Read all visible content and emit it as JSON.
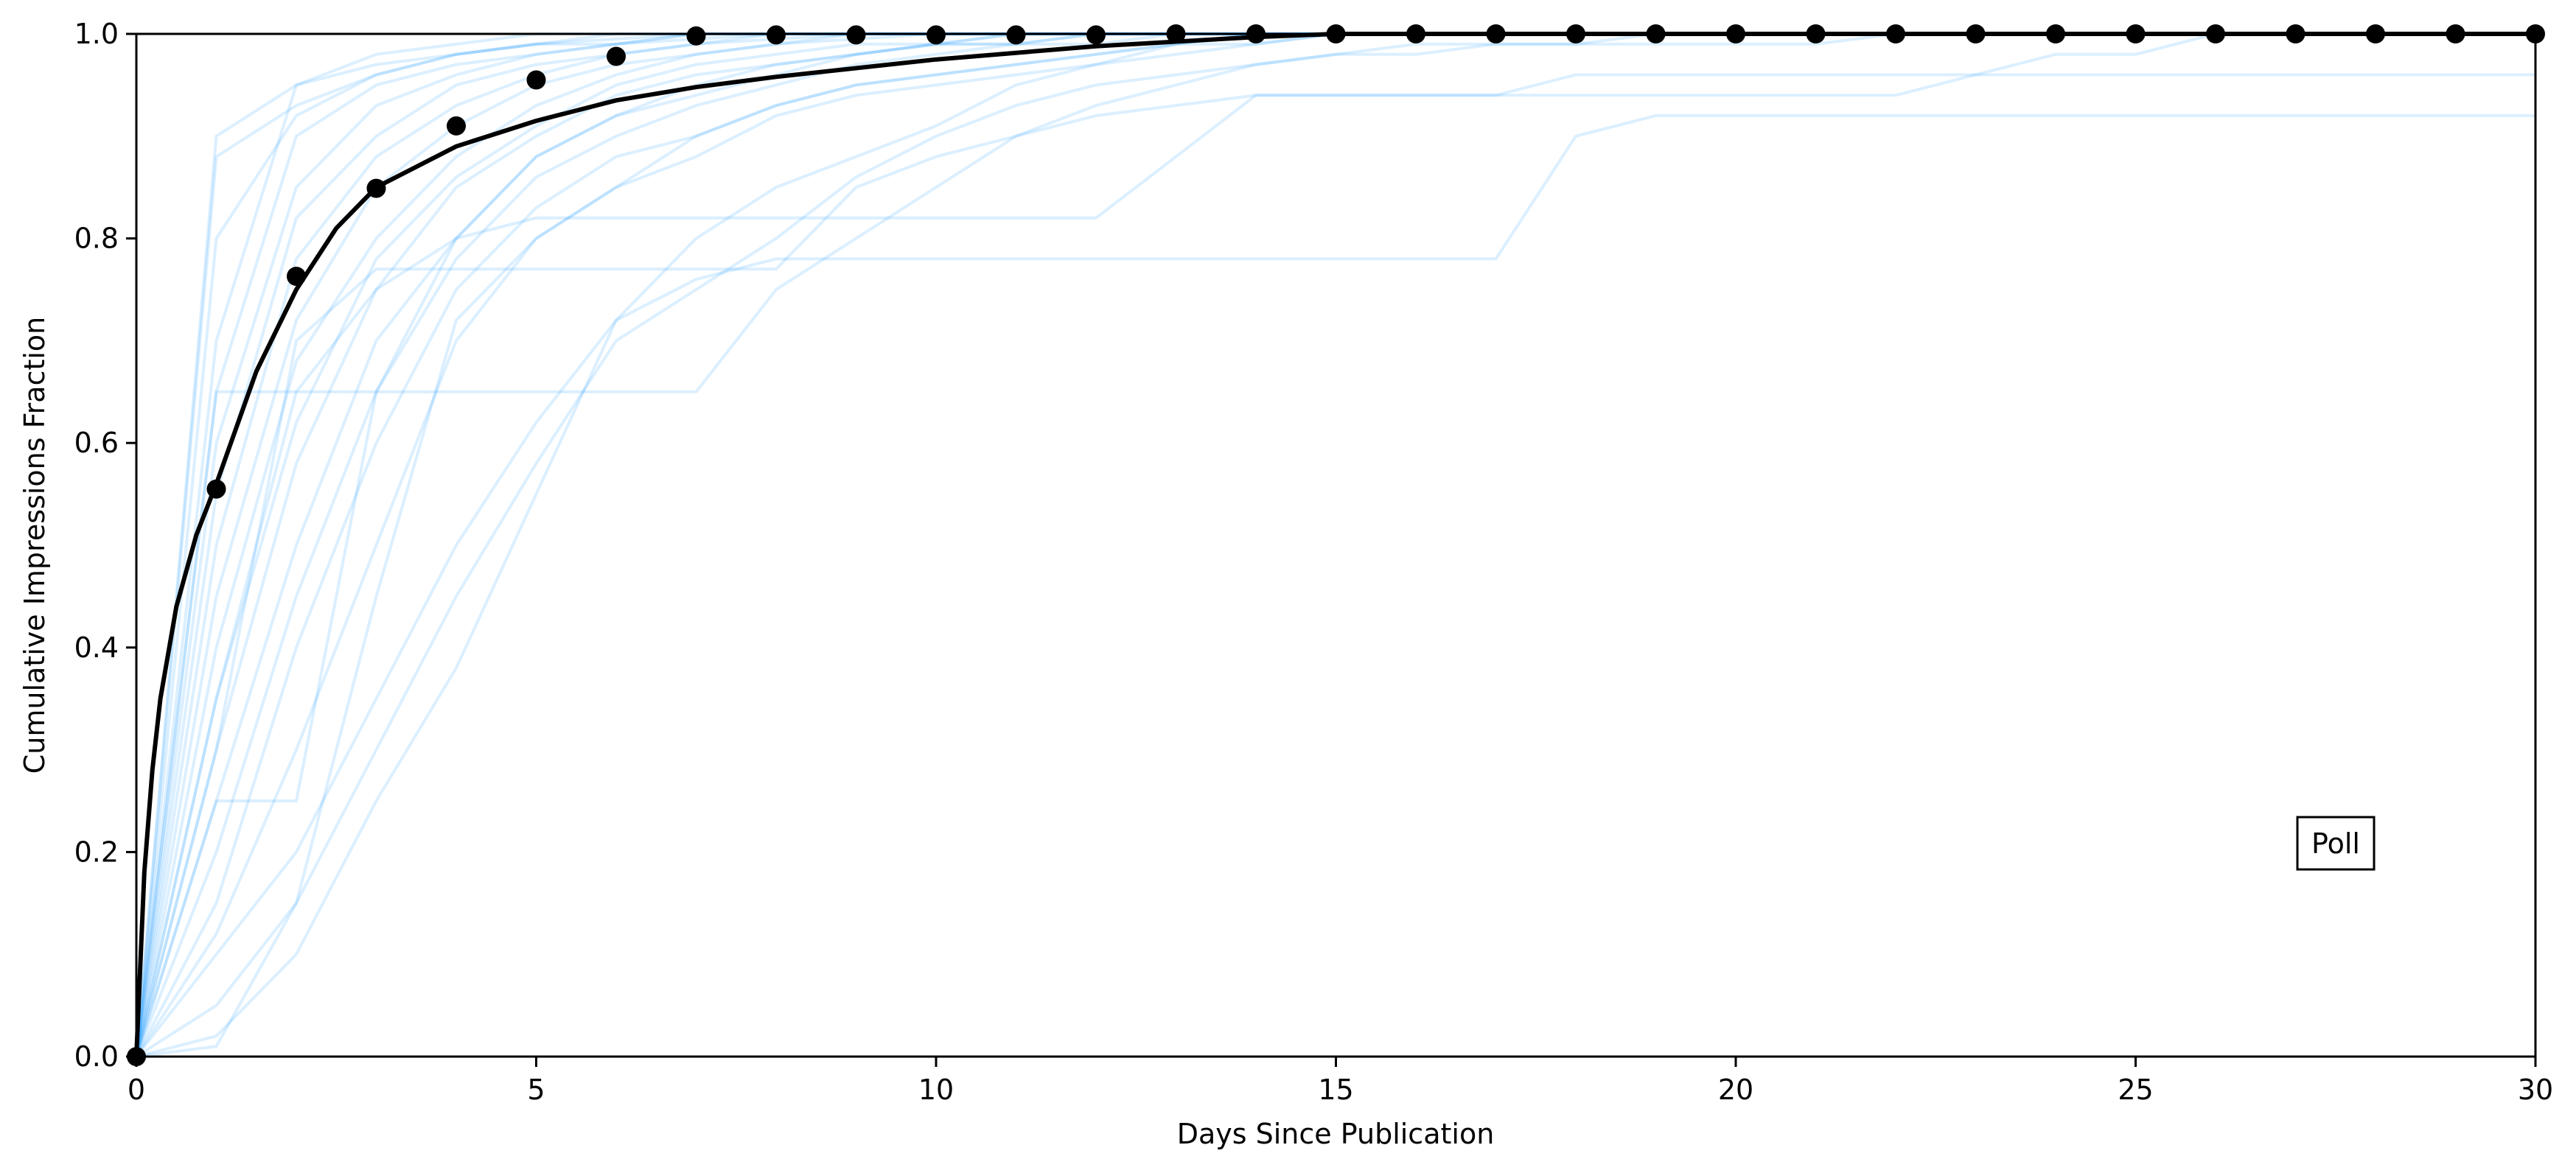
{
  "chart_data": {
    "type": "line",
    "title": "",
    "xlabel": "Days Since Publication",
    "ylabel": "Cumulative Impressions Fraction",
    "xlim": [
      0,
      30
    ],
    "ylim": [
      0,
      1
    ],
    "grid": false,
    "x_ticks": [
      0,
      5,
      10,
      15,
      20,
      25,
      30
    ],
    "x_tick_labels": [
      "0",
      "5",
      "10",
      "15",
      "20",
      "25",
      "30"
    ],
    "y_ticks": [
      0,
      0.2,
      0.4,
      0.6,
      0.8,
      1.0
    ],
    "y_tick_labels": [
      "0.0",
      "0.2",
      "0.4",
      "0.6",
      "0.8",
      "1.0"
    ],
    "annotation": "Poll",
    "colors": {
      "individual": "#1e9bff",
      "mean": "#000000",
      "fit": "#000000"
    },
    "series": [
      {
        "role": "mean-points",
        "x": [
          0,
          1,
          2,
          3,
          4,
          5,
          6,
          7,
          8,
          9,
          10,
          11,
          12,
          13,
          14,
          15,
          16,
          17,
          18,
          19,
          20,
          21,
          22,
          23,
          24,
          25,
          26,
          27,
          28,
          29,
          30
        ],
        "values": [
          0.0,
          0.555,
          0.763,
          0.849,
          0.91,
          0.955,
          0.978,
          0.998,
          0.999,
          0.999,
          0.999,
          0.999,
          0.999,
          1.0,
          1.0,
          1.0,
          1.0,
          1.0,
          1.0,
          1.0,
          1.0,
          1.0,
          1.0,
          1.0,
          1.0,
          1.0,
          1.0,
          1.0,
          1.0,
          1.0,
          1.0
        ]
      },
      {
        "role": "fit-curve",
        "x": [
          0,
          0.1,
          0.2,
          0.3,
          0.5,
          0.75,
          1,
          1.5,
          2,
          2.5,
          3,
          4,
          5,
          6,
          7,
          8,
          10,
          12,
          14,
          15,
          20,
          25,
          30
        ],
        "values": [
          0.0,
          0.18,
          0.28,
          0.35,
          0.44,
          0.51,
          0.56,
          0.67,
          0.75,
          0.81,
          0.85,
          0.89,
          0.915,
          0.935,
          0.948,
          0.958,
          0.975,
          0.988,
          0.997,
          1.0,
          1.0,
          1.0,
          1.0
        ]
      }
    ],
    "individual_series": [
      [
        0,
        0.7,
        0.95,
        0.97,
        0.98,
        0.99,
        0.995,
        1,
        1,
        1,
        1,
        1,
        1,
        1,
        1,
        1,
        1,
        1,
        1,
        1,
        1,
        1,
        1,
        1,
        1,
        1,
        1,
        1,
        1,
        1,
        1
      ],
      [
        0,
        0.65,
        0.9,
        0.95,
        0.97,
        0.98,
        0.99,
        1,
        1,
        1,
        1,
        1,
        1,
        1,
        1,
        1,
        1,
        1,
        1,
        1,
        1,
        1,
        1,
        1,
        1,
        1,
        1,
        1,
        1,
        1,
        1
      ],
      [
        0,
        0.6,
        0.85,
        0.93,
        0.96,
        0.98,
        0.99,
        0.995,
        1,
        1,
        1,
        1,
        1,
        1,
        1,
        1,
        1,
        1,
        1,
        1,
        1,
        1,
        1,
        1,
        1,
        1,
        1,
        1,
        1,
        1,
        1
      ],
      [
        0,
        0.55,
        0.82,
        0.9,
        0.95,
        0.97,
        0.98,
        0.99,
        1,
        1,
        1,
        1,
        1,
        1,
        1,
        1,
        1,
        1,
        1,
        1,
        1,
        1,
        1,
        1,
        1,
        1,
        1,
        1,
        1,
        1,
        1
      ],
      [
        0,
        0.5,
        0.78,
        0.88,
        0.93,
        0.96,
        0.98,
        0.99,
        0.995,
        1,
        1,
        1,
        1,
        1,
        1,
        1,
        1,
        1,
        1,
        1,
        1,
        1,
        1,
        1,
        1,
        1,
        1,
        1,
        1,
        1,
        1
      ],
      [
        0,
        0.45,
        0.72,
        0.85,
        0.91,
        0.95,
        0.97,
        0.98,
        0.99,
        1,
        1,
        1,
        1,
        1,
        1,
        1,
        1,
        1,
        1,
        1,
        1,
        1,
        1,
        1,
        1,
        1,
        1,
        1,
        1,
        1,
        1
      ],
      [
        0,
        0.4,
        0.68,
        0.8,
        0.88,
        0.93,
        0.96,
        0.98,
        0.99,
        0.995,
        1,
        1,
        1,
        1,
        1,
        1,
        1,
        1,
        1,
        1,
        1,
        1,
        1,
        1,
        1,
        1,
        1,
        1,
        1,
        1,
        1
      ],
      [
        0,
        0.35,
        0.62,
        0.78,
        0.86,
        0.91,
        0.95,
        0.97,
        0.98,
        0.99,
        0.99,
        1,
        1,
        1,
        1,
        1,
        1,
        1,
        1,
        1,
        1,
        1,
        1,
        1,
        1,
        1,
        1,
        1,
        1,
        1,
        1
      ],
      [
        0,
        0.3,
        0.58,
        0.75,
        0.85,
        0.9,
        0.94,
        0.96,
        0.97,
        0.98,
        0.99,
        0.99,
        1,
        1,
        1,
        1,
        1,
        1,
        1,
        1,
        1,
        1,
        1,
        1,
        1,
        1,
        1,
        1,
        1,
        1,
        1
      ],
      [
        0,
        0.25,
        0.5,
        0.7,
        0.8,
        0.88,
        0.92,
        0.95,
        0.97,
        0.98,
        0.99,
        0.99,
        1,
        1,
        1,
        1,
        1,
        1,
        1,
        1,
        1,
        1,
        1,
        1,
        1,
        1,
        1,
        1,
        1,
        1,
        1
      ],
      [
        0,
        0.2,
        0.45,
        0.65,
        0.78,
        0.86,
        0.9,
        0.93,
        0.95,
        0.97,
        0.98,
        0.99,
        0.99,
        1,
        1,
        1,
        1,
        1,
        1,
        1,
        1,
        1,
        1,
        1,
        1,
        1,
        1,
        1,
        1,
        1,
        1
      ],
      [
        0,
        0.15,
        0.4,
        0.6,
        0.75,
        0.83,
        0.88,
        0.9,
        0.93,
        0.95,
        0.96,
        0.97,
        0.98,
        0.99,
        1,
        1,
        1,
        1,
        1,
        1,
        1,
        1,
        1,
        1,
        1,
        1,
        1,
        1,
        1,
        1,
        1
      ],
      [
        0,
        0.12,
        0.3,
        0.5,
        0.7,
        0.8,
        0.85,
        0.88,
        0.92,
        0.94,
        0.95,
        0.96,
        0.97,
        0.98,
        0.99,
        1,
        1,
        1,
        1,
        1,
        1,
        1,
        1,
        1,
        1,
        1,
        1,
        1,
        1,
        1,
        1
      ],
      [
        0,
        0.25,
        0.25,
        0.65,
        0.8,
        0.88,
        0.92,
        0.94,
        0.96,
        0.98,
        0.99,
        1,
        1,
        1,
        1,
        1,
        1,
        1,
        1,
        1,
        1,
        1,
        1,
        1,
        1,
        1,
        1,
        1,
        1,
        1,
        1
      ],
      [
        0,
        0.9,
        0.95,
        0.98,
        0.99,
        1,
        1,
        1,
        1,
        1,
        1,
        1,
        1,
        1,
        1,
        1,
        1,
        1,
        1,
        1,
        1,
        1,
        1,
        1,
        1,
        1,
        1,
        1,
        1,
        1,
        1
      ],
      [
        0,
        0.8,
        0.92,
        0.96,
        0.98,
        0.99,
        1,
        1,
        1,
        1,
        1,
        1,
        1,
        1,
        1,
        1,
        1,
        1,
        1,
        1,
        1,
        1,
        1,
        1,
        1,
        1,
        1,
        1,
        1,
        1,
        1
      ],
      [
        0,
        0.1,
        0.2,
        0.35,
        0.5,
        0.62,
        0.72,
        0.8,
        0.85,
        0.88,
        0.91,
        0.95,
        0.97,
        0.99,
        1,
        1,
        1,
        1,
        1,
        1,
        1,
        1,
        1,
        1,
        1,
        1,
        1,
        1,
        1,
        1,
        1
      ],
      [
        0,
        0.05,
        0.15,
        0.3,
        0.45,
        0.58,
        0.7,
        0.75,
        0.8,
        0.86,
        0.9,
        0.93,
        0.95,
        0.96,
        0.97,
        0.98,
        0.98,
        0.99,
        0.99,
        1,
        1,
        1,
        1,
        1,
        1,
        1,
        1,
        1,
        1,
        1,
        1
      ],
      [
        0,
        0.65,
        0.65,
        0.65,
        0.65,
        0.65,
        0.65,
        0.65,
        0.75,
        0.8,
        0.85,
        0.9,
        0.93,
        0.95,
        0.97,
        0.98,
        0.99,
        0.99,
        0.99,
        0.99,
        0.99,
        0.99,
        1,
        1,
        1,
        1,
        1,
        1,
        1,
        1,
        1
      ],
      [
        0,
        0.02,
        0.1,
        0.25,
        0.38,
        0.55,
        0.72,
        0.76,
        0.78,
        0.78,
        0.78,
        0.78,
        0.78,
        0.78,
        0.78,
        0.78,
        0.78,
        0.78,
        0.9,
        0.92,
        0.92,
        0.92,
        0.92,
        0.92,
        0.92,
        0.92,
        0.92,
        0.92,
        0.92,
        0.92,
        0.92
      ],
      [
        0,
        0.3,
        0.7,
        0.77,
        0.77,
        0.77,
        0.77,
        0.77,
        0.77,
        0.85,
        0.88,
        0.9,
        0.92,
        0.93,
        0.94,
        0.94,
        0.94,
        0.94,
        0.94,
        0.94,
        0.94,
        0.94,
        0.94,
        0.96,
        0.98,
        0.98,
        1,
        1,
        1,
        1,
        1
      ],
      [
        0,
        0.35,
        0.65,
        0.75,
        0.8,
        0.82,
        0.82,
        0.82,
        0.82,
        0.82,
        0.82,
        0.82,
        0.82,
        0.88,
        0.94,
        0.94,
        0.94,
        0.94,
        0.96,
        0.96,
        0.96,
        0.96,
        0.96,
        0.96,
        0.96,
        0.96,
        0.96,
        0.96,
        0.96,
        0.96,
        0.96
      ],
      [
        0,
        0.01,
        0.15,
        0.45,
        0.72,
        0.8,
        0.85,
        0.9,
        0.93,
        0.95,
        0.96,
        0.97,
        0.98,
        0.99,
        0.99,
        1,
        1,
        1,
        1,
        1,
        1,
        1,
        1,
        1,
        1,
        1,
        1,
        1,
        1,
        1,
        1
      ],
      [
        0,
        0.88,
        0.93,
        0.96,
        0.98,
        0.99,
        0.99,
        1,
        1,
        1,
        1,
        1,
        1,
        1,
        1,
        1,
        1,
        1,
        1,
        1,
        1,
        1,
        1,
        1,
        1,
        1,
        1,
        1,
        1,
        1,
        1
      ]
    ]
  }
}
